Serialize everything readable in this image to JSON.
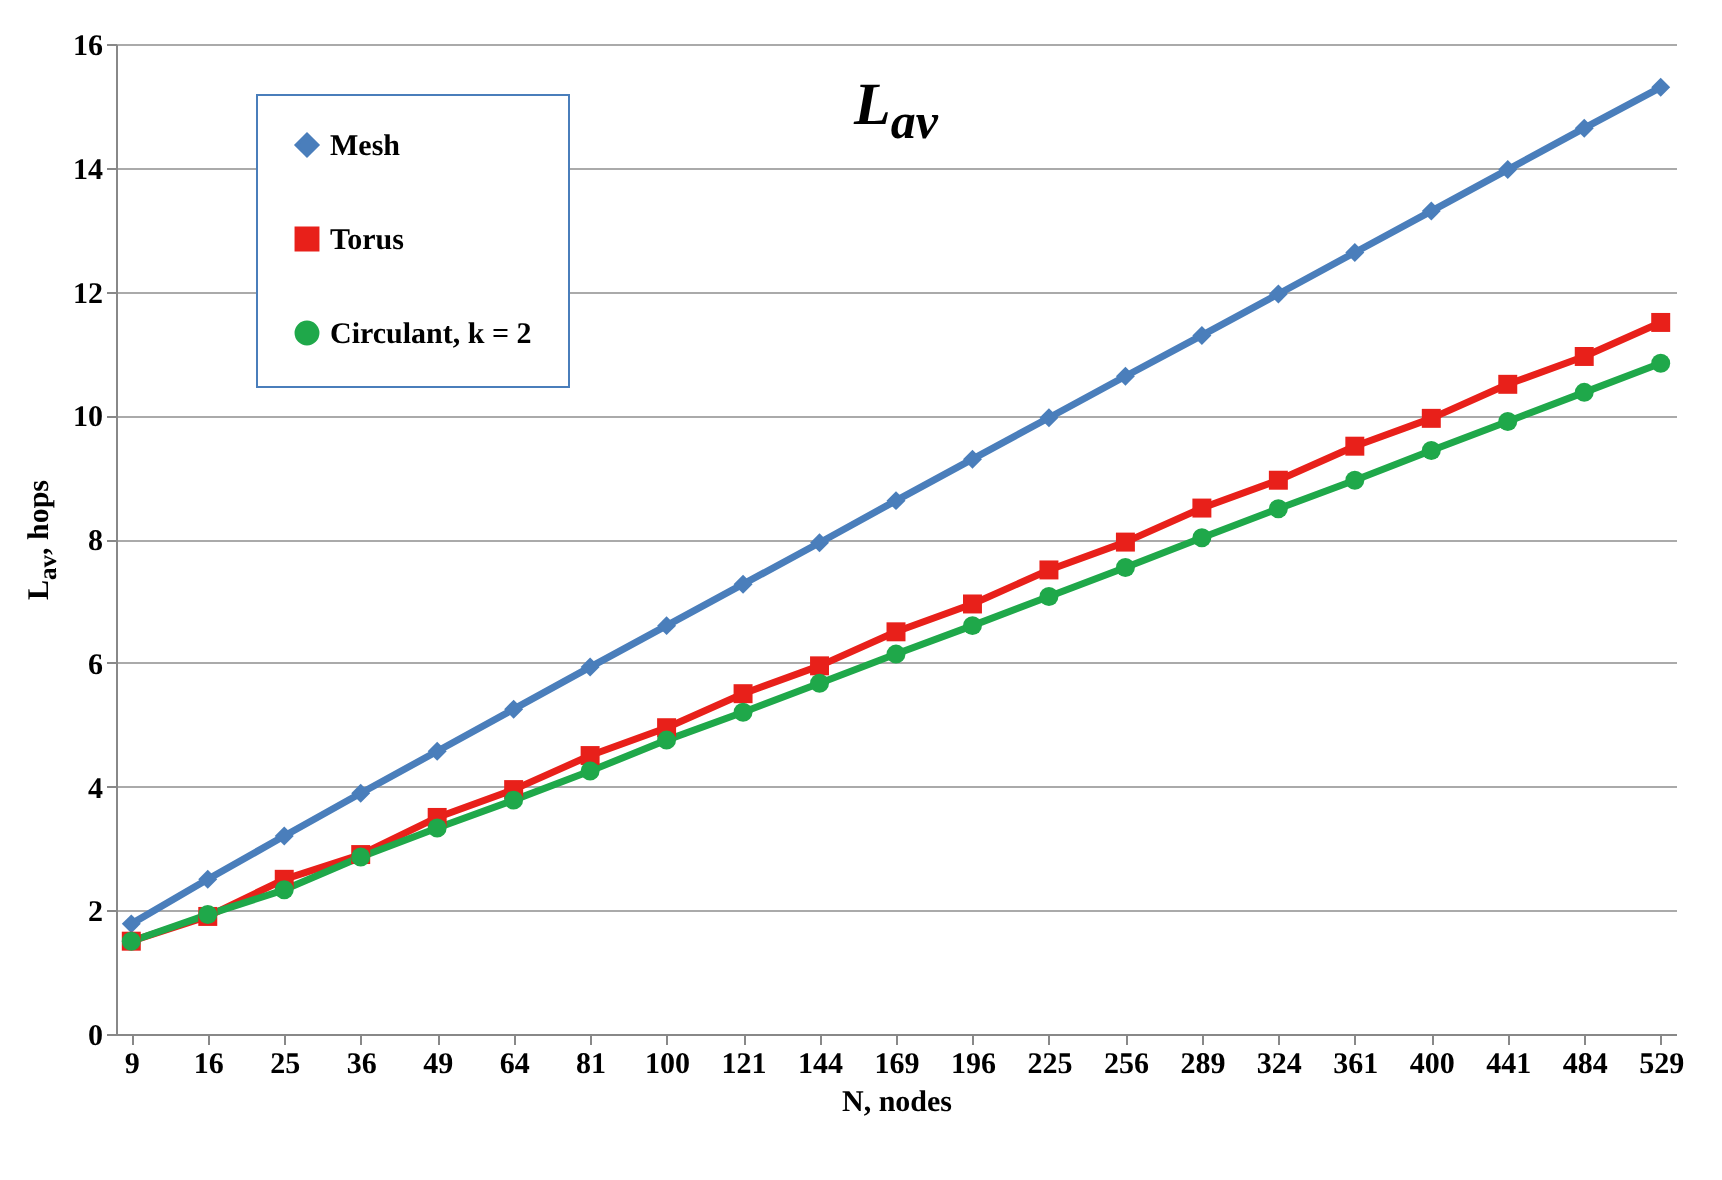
{
  "chart_data": {
    "type": "line",
    "title": "L$_{av}$",
    "xlabel": "N, nodes",
    "ylabel": "L$_{av}$, hops",
    "categories": [
      "9",
      "16",
      "25",
      "36",
      "49",
      "64",
      "81",
      "100",
      "121",
      "144",
      "169",
      "196",
      "225",
      "256",
      "289",
      "324",
      "361",
      "400",
      "441",
      "484",
      "529"
    ],
    "series": [
      {
        "name": "Mesh",
        "color": "#4a7ebb",
        "marker": "diamond",
        "values": [
          1.78,
          2.5,
          3.2,
          3.89,
          4.57,
          5.25,
          5.93,
          6.6,
          7.27,
          7.94,
          8.62,
          9.29,
          9.96,
          10.63,
          11.29,
          11.96,
          12.63,
          13.3,
          13.97,
          14.64,
          15.3
        ]
      },
      {
        "name": "Torus",
        "color": "#e8201a",
        "marker": "square",
        "values": [
          1.5,
          1.9,
          2.5,
          2.9,
          3.5,
          3.95,
          4.5,
          4.95,
          5.5,
          5.95,
          6.5,
          6.95,
          7.5,
          7.95,
          8.5,
          8.95,
          9.5,
          9.95,
          10.5,
          10.95,
          11.5
        ]
      },
      {
        "name": "Circulant, k = 2",
        "color": "#1fa84a",
        "marker": "circle",
        "values": [
          1.5,
          1.93,
          2.33,
          2.86,
          3.33,
          3.78,
          4.25,
          4.75,
          5.2,
          5.67,
          6.14,
          6.6,
          7.07,
          7.54,
          8.02,
          8.49,
          8.95,
          9.43,
          9.9,
          10.37,
          10.84
        ]
      }
    ],
    "ylim": [
      0,
      16
    ],
    "yticks": [
      0,
      2,
      4,
      6,
      8,
      10,
      12,
      14,
      16
    ],
    "grid": "y",
    "legend": "top left"
  }
}
